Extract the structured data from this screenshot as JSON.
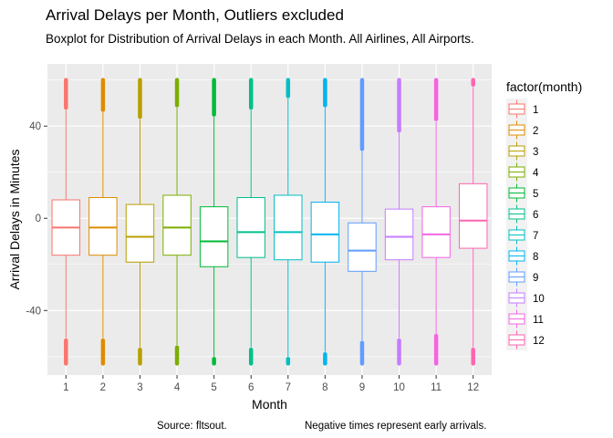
{
  "chart_data": {
    "type": "boxplot",
    "title": "Arrival Delays per Month, Outliers excluded",
    "subtitle": "Boxplot for Distribution of Arrival Delays in each Month.  All Airlines, All Airports.",
    "xlabel": "Month",
    "ylabel": "Arrival Delays in Minutes",
    "ylim": [
      -68,
      67
    ],
    "y_ticks": [
      -40,
      0,
      40
    ],
    "grid": true,
    "legend": {
      "title": "factor(month)",
      "position": "right"
    },
    "caption_left": "Source: fltsout.",
    "caption_right": "Negative times represent early arrivals.",
    "categories": [
      "1",
      "2",
      "3",
      "4",
      "5",
      "6",
      "7",
      "8",
      "9",
      "10",
      "11",
      "12"
    ],
    "series": [
      {
        "month": "1",
        "color": "#F8766D",
        "whisker_low": -52,
        "q1": -16,
        "median": -4,
        "q3": 8,
        "whisker_high": 47,
        "outliers_low": [
          -53,
          -63
        ],
        "outliers_high": [
          48,
          60
        ]
      },
      {
        "month": "2",
        "color": "#DE8C00",
        "whisker_low": -52,
        "q1": -16,
        "median": -4,
        "q3": 9,
        "whisker_high": 46,
        "outliers_low": [
          -53,
          -63
        ],
        "outliers_high": [
          47,
          60
        ]
      },
      {
        "month": "3",
        "color": "#B79F00",
        "whisker_low": -56,
        "q1": -19,
        "median": -8,
        "q3": 6,
        "whisker_high": 43,
        "outliers_low": [
          -57,
          -63
        ],
        "outliers_high": [
          44,
          60
        ]
      },
      {
        "month": "4",
        "color": "#7CAE00",
        "whisker_low": -55,
        "q1": -16,
        "median": -4,
        "q3": 10,
        "whisker_high": 48,
        "outliers_low": [
          -56,
          -63
        ],
        "outliers_high": [
          49,
          60
        ]
      },
      {
        "month": "5",
        "color": "#00BA38",
        "whisker_low": -60,
        "q1": -21,
        "median": -10,
        "q3": 5,
        "whisker_high": 44,
        "outliers_low": [
          -61,
          -63
        ],
        "outliers_high": [
          45,
          60
        ]
      },
      {
        "month": "6",
        "color": "#00C08B",
        "whisker_low": -56,
        "q1": -17,
        "median": -6,
        "q3": 9,
        "whisker_high": 47,
        "outliers_low": [
          -57,
          -63
        ],
        "outliers_high": [
          48,
          60
        ]
      },
      {
        "month": "7",
        "color": "#00BFC4",
        "whisker_low": -60,
        "q1": -18,
        "median": -6,
        "q3": 10,
        "whisker_high": 52,
        "outliers_low": [
          -61,
          -63
        ],
        "outliers_high": [
          53,
          60
        ]
      },
      {
        "month": "8",
        "color": "#00B4F0",
        "whisker_low": -58,
        "q1": -19,
        "median": -7,
        "q3": 7,
        "whisker_high": 48,
        "outliers_low": [
          -59,
          -63
        ],
        "outliers_high": [
          49,
          60
        ]
      },
      {
        "month": "9",
        "color": "#619CFF",
        "whisker_low": -53,
        "q1": -23,
        "median": -14,
        "q3": -2,
        "whisker_high": 29,
        "outliers_low": [
          -54,
          -63
        ],
        "outliers_high": [
          30,
          60
        ]
      },
      {
        "month": "10",
        "color": "#C77CFF",
        "whisker_low": -52,
        "q1": -18,
        "median": -8,
        "q3": 4,
        "whisker_high": 37,
        "outliers_low": [
          -53,
          -63
        ],
        "outliers_high": [
          38,
          60
        ]
      },
      {
        "month": "11",
        "color": "#F564E3",
        "whisker_low": -50,
        "q1": -17,
        "median": -7,
        "q3": 5,
        "whisker_high": 42,
        "outliers_low": [
          -51,
          -63
        ],
        "outliers_high": [
          43,
          60
        ]
      },
      {
        "month": "12",
        "color": "#FF64B0",
        "whisker_low": -56,
        "q1": -13,
        "median": -1,
        "q3": 15,
        "whisker_high": 57,
        "outliers_low": [
          -57,
          -63
        ],
        "outliers_high": [
          58,
          60
        ]
      }
    ]
  }
}
